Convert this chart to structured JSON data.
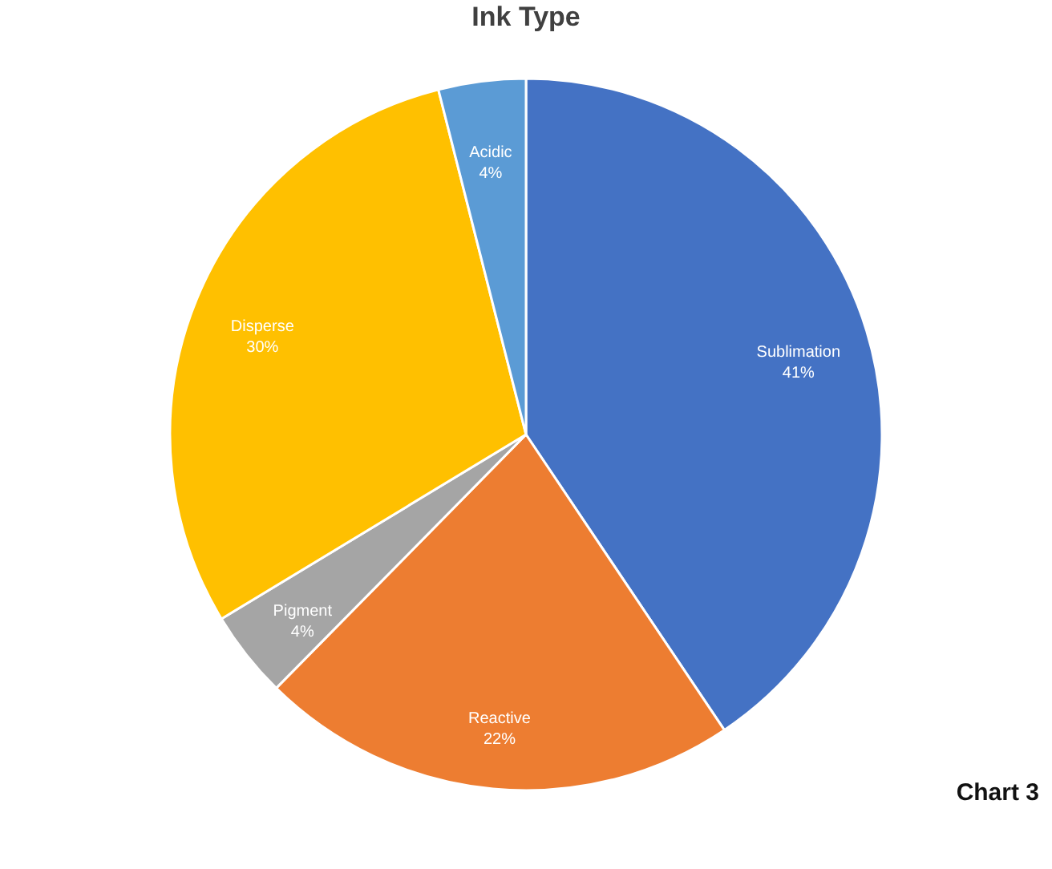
{
  "chart_data": {
    "type": "pie",
    "title": "Ink Type",
    "categories": [
      "Sublimation",
      "Reactive",
      "Pigment",
      "Disperse",
      "Acidic"
    ],
    "values": [
      41,
      22,
      4,
      30,
      4
    ],
    "value_labels": [
      "41%",
      "22%",
      "4%",
      "30%",
      "4%"
    ],
    "colors": [
      "#4472c4",
      "#ed7d31",
      "#a5a5a5",
      "#ffc000",
      "#5b9bd5"
    ],
    "legend": false,
    "annotations": [
      "Chart 3"
    ]
  }
}
